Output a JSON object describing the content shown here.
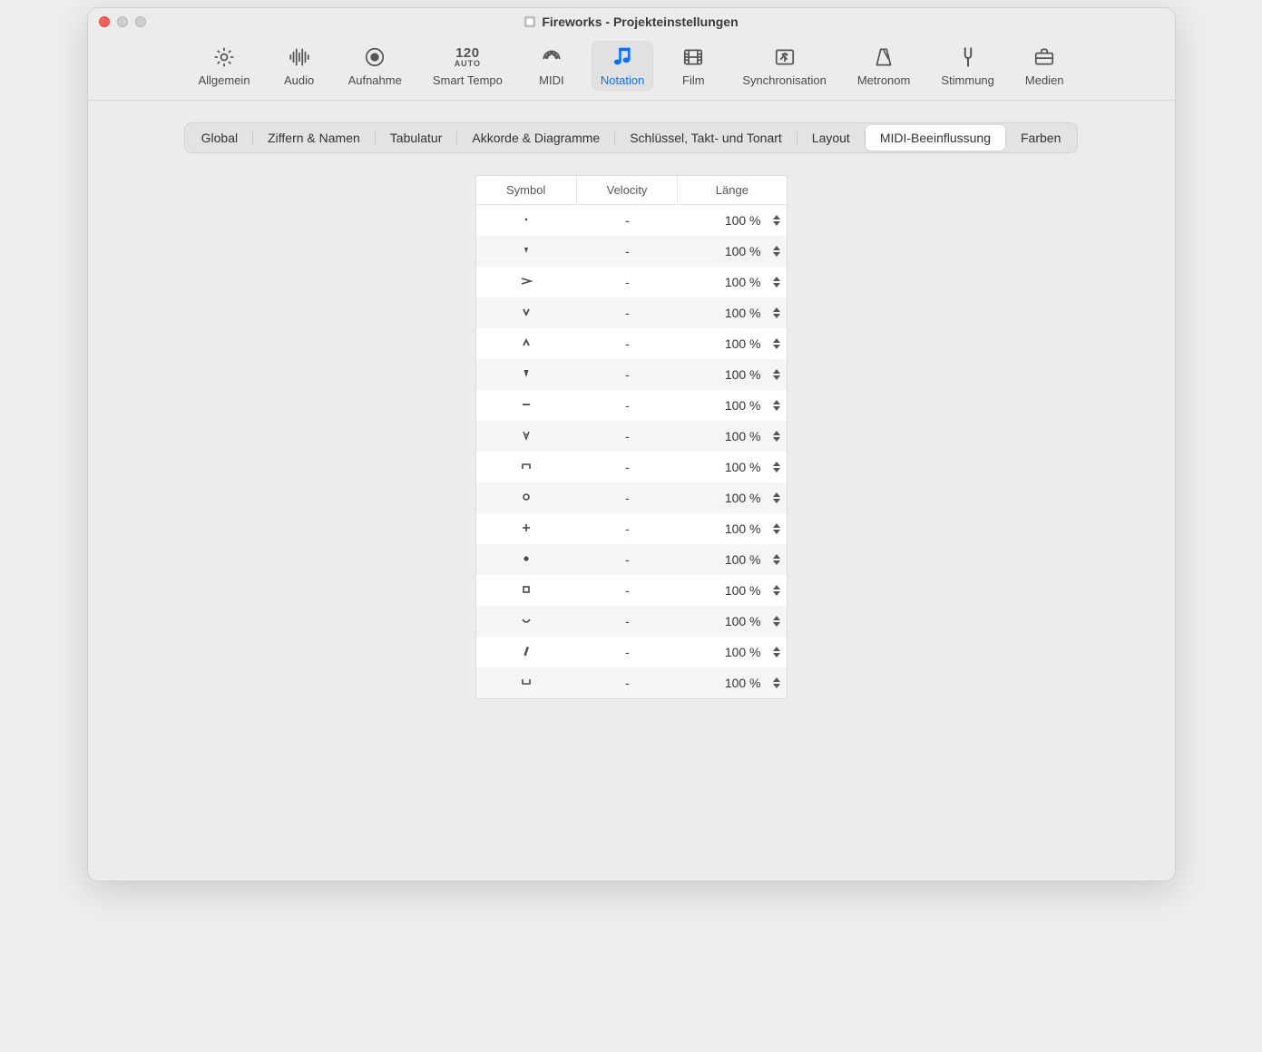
{
  "window": {
    "title": "Fireworks - Projekteinstellungen"
  },
  "toolbar": {
    "items": [
      {
        "id": "allgemein",
        "label": "Allgemein",
        "icon": "gear-icon",
        "selected": false
      },
      {
        "id": "audio",
        "label": "Audio",
        "icon": "waveform-icon",
        "selected": false
      },
      {
        "id": "aufnahme",
        "label": "Aufnahme",
        "icon": "record-icon",
        "selected": false
      },
      {
        "id": "smart-tempo",
        "label": "Smart Tempo",
        "icon": "smart-tempo-icon",
        "selected": false,
        "bpm": "120",
        "auto": "AUTO"
      },
      {
        "id": "midi",
        "label": "MIDI",
        "icon": "midi-icon",
        "selected": false
      },
      {
        "id": "notation",
        "label": "Notation",
        "icon": "notation-icon",
        "selected": true
      },
      {
        "id": "film",
        "label": "Film",
        "icon": "film-icon",
        "selected": false
      },
      {
        "id": "synchronisation",
        "label": "Synchronisation",
        "icon": "sync-icon",
        "selected": false
      },
      {
        "id": "metronom",
        "label": "Metronom",
        "icon": "metronome-icon",
        "selected": false
      },
      {
        "id": "stimmung",
        "label": "Stimmung",
        "icon": "tuning-fork-icon",
        "selected": false
      },
      {
        "id": "medien",
        "label": "Medien",
        "icon": "briefcase-icon",
        "selected": false
      }
    ]
  },
  "subtabs": {
    "items": [
      {
        "id": "global",
        "label": "Global",
        "active": false
      },
      {
        "id": "ziffern",
        "label": "Ziffern & Namen",
        "active": false
      },
      {
        "id": "tabulatur",
        "label": "Tabulatur",
        "active": false
      },
      {
        "id": "akkorde",
        "label": "Akkorde & Diagramme",
        "active": false
      },
      {
        "id": "schluessel",
        "label": "Schlüssel, Takt- und Tonart",
        "active": false
      },
      {
        "id": "layout",
        "label": "Layout",
        "active": false
      },
      {
        "id": "midi-infl",
        "label": "MIDI-Beeinflussung",
        "active": true
      },
      {
        "id": "farben",
        "label": "Farben",
        "active": false
      }
    ]
  },
  "table": {
    "columns": {
      "symbol": "Symbol",
      "velocity": "Velocity",
      "length": "Länge"
    },
    "rows": [
      {
        "symbol": "staccato-dot",
        "velocity": "-",
        "length": "100 %"
      },
      {
        "symbol": "staccatissimo-down",
        "velocity": "-",
        "length": "100 %"
      },
      {
        "symbol": "accent",
        "velocity": "-",
        "length": "100 %"
      },
      {
        "symbol": "marcato-down",
        "velocity": "-",
        "length": "100 %"
      },
      {
        "symbol": "marcato-up",
        "velocity": "-",
        "length": "100 %"
      },
      {
        "symbol": "staccatissimo-filled",
        "velocity": "-",
        "length": "100 %"
      },
      {
        "symbol": "tenuto",
        "velocity": "-",
        "length": "100 %"
      },
      {
        "symbol": "v-open-down",
        "velocity": "-",
        "length": "100 %"
      },
      {
        "symbol": "bracket-down",
        "velocity": "-",
        "length": "100 %"
      },
      {
        "symbol": "open-circle",
        "velocity": "-",
        "length": "100 %"
      },
      {
        "symbol": "plus",
        "velocity": "-",
        "length": "100 %"
      },
      {
        "symbol": "filled-dot",
        "velocity": "-",
        "length": "100 %"
      },
      {
        "symbol": "open-square",
        "velocity": "-",
        "length": "100 %"
      },
      {
        "symbol": "arc-up",
        "velocity": "-",
        "length": "100 %"
      },
      {
        "symbol": "slash",
        "velocity": "-",
        "length": "100 %"
      },
      {
        "symbol": "bracket-up",
        "velocity": "-",
        "length": "100 %"
      }
    ]
  },
  "colors": {
    "accent": "#0a6fff",
    "window_bg": "#ececec",
    "row_alt": "#f5f5f5",
    "border": "#dcdcdc",
    "text": "#333333"
  }
}
